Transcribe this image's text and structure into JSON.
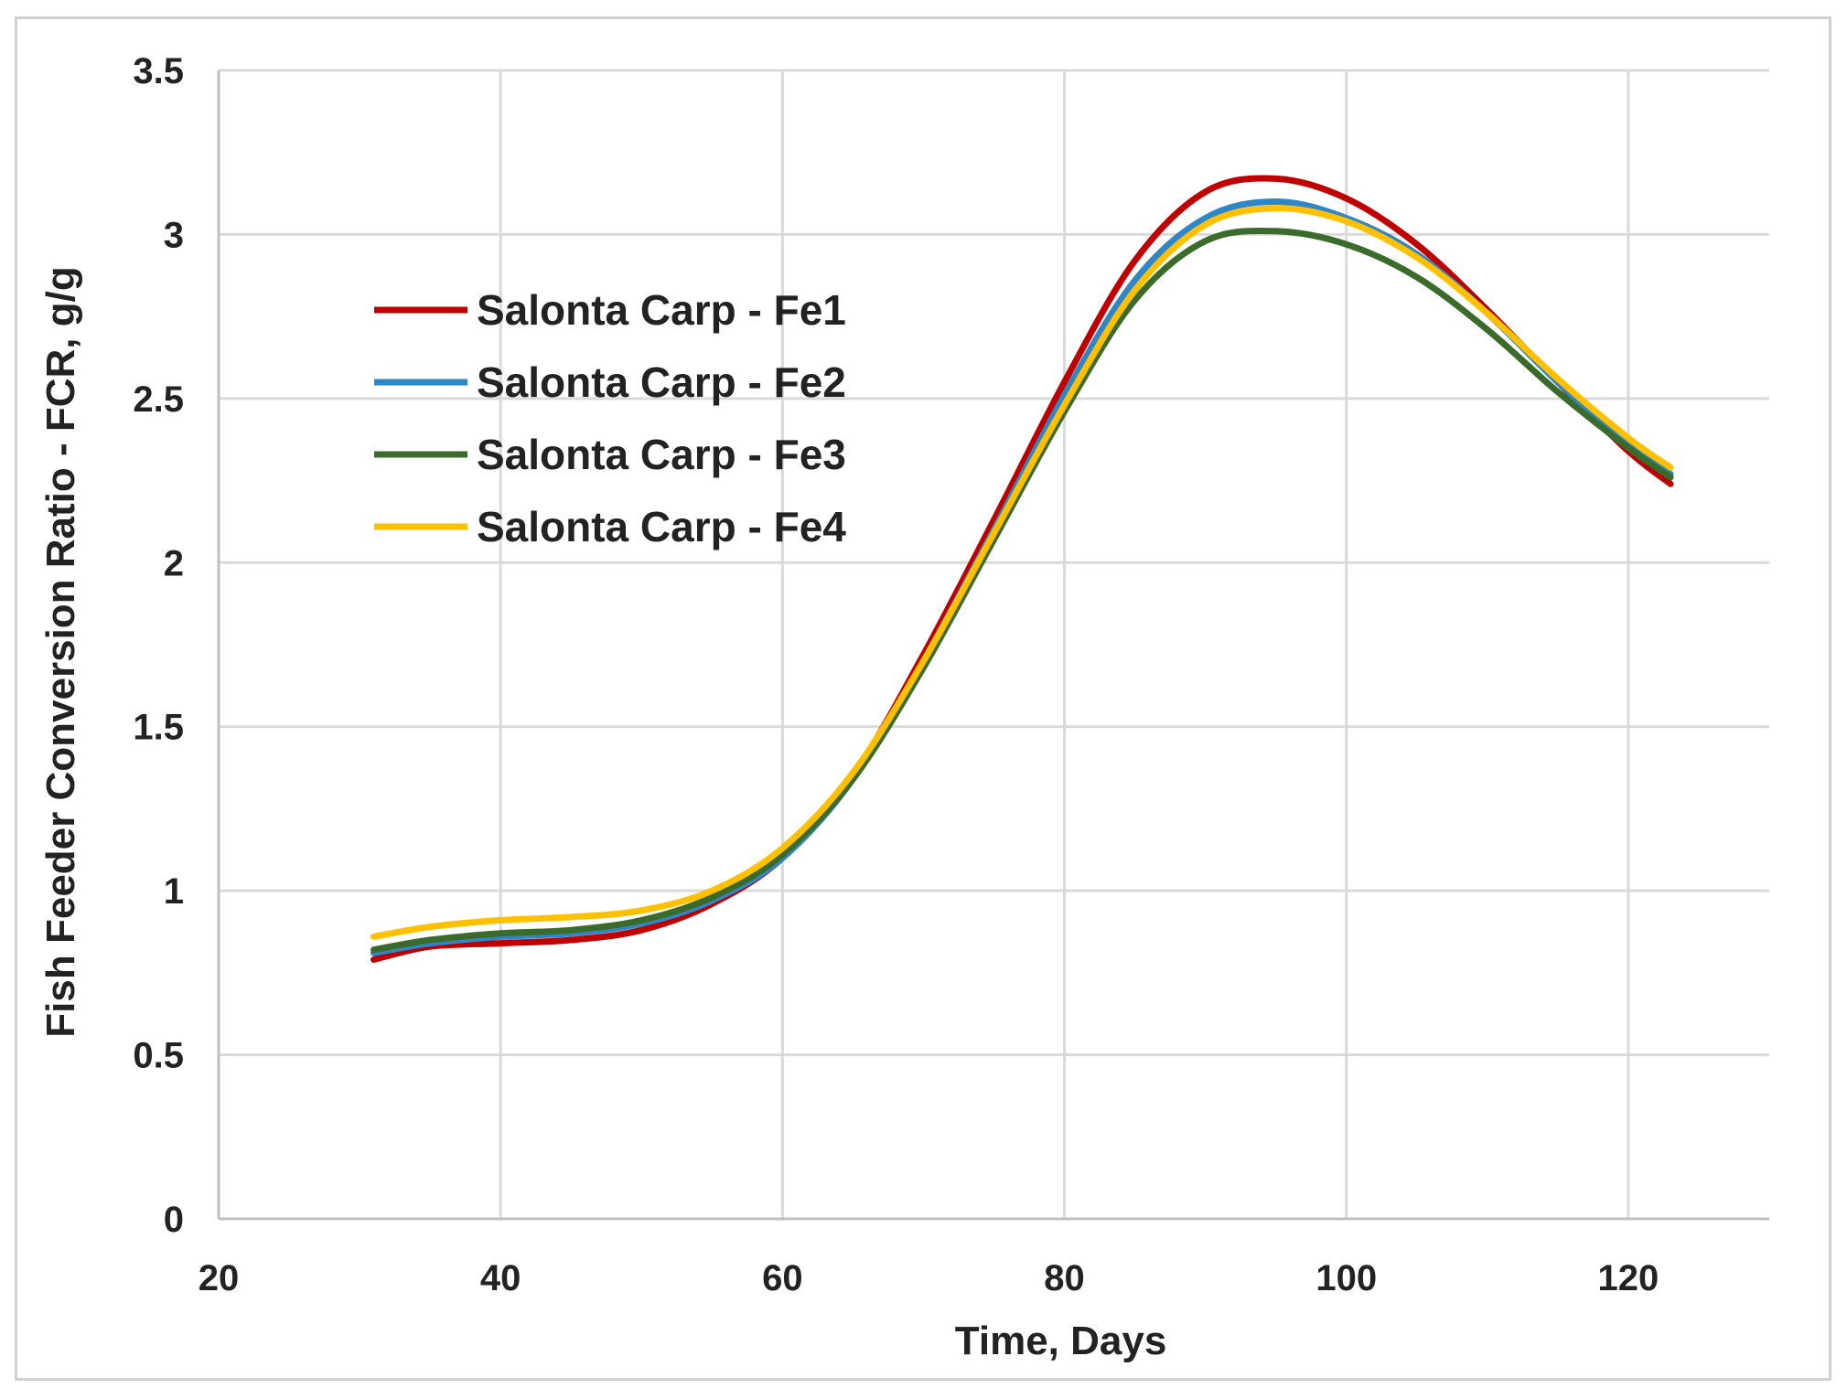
{
  "chart_data": {
    "type": "line",
    "title": "",
    "xlabel": "Time, Days",
    "ylabel": "Fish Feeder Conversion Ratio -  FCR, g/g",
    "xlim": [
      20,
      130
    ],
    "ylim": [
      0,
      3.5
    ],
    "x_ticks": [
      20,
      40,
      60,
      80,
      100,
      120
    ],
    "y_ticks": [
      0,
      0.5,
      1,
      1.5,
      2,
      2.5,
      3,
      3.5
    ],
    "x_tick_labels": [
      "20",
      "40",
      "60",
      "80",
      "100",
      "120"
    ],
    "y_tick_labels": [
      "0",
      "0.5",
      "1",
      "1.5",
      "2",
      "2.5",
      "3",
      "3.5"
    ],
    "grid": true,
    "legend_position": "upper-left",
    "x": [
      31,
      35,
      40,
      45,
      50,
      55,
      60,
      65,
      70,
      75,
      80,
      85,
      90,
      95,
      100,
      105,
      110,
      115,
      120,
      123
    ],
    "series": [
      {
        "name": "Salonta Carp - Fe1",
        "color": "#c00000",
        "values": [
          0.79,
          0.83,
          0.84,
          0.85,
          0.88,
          0.96,
          1.1,
          1.35,
          1.72,
          2.13,
          2.55,
          2.92,
          3.13,
          3.17,
          3.11,
          2.97,
          2.77,
          2.55,
          2.34,
          2.24
        ]
      },
      {
        "name": "Salonta Carp - Fe2",
        "color": "#2e86c8",
        "values": [
          0.81,
          0.84,
          0.86,
          0.87,
          0.9,
          0.97,
          1.1,
          1.34,
          1.7,
          2.1,
          2.51,
          2.86,
          3.05,
          3.1,
          3.05,
          2.94,
          2.76,
          2.55,
          2.36,
          2.27
        ]
      },
      {
        "name": "Salonta Carp - Fe3",
        "color": "#3a6b2a",
        "values": [
          0.82,
          0.85,
          0.87,
          0.88,
          0.91,
          0.98,
          1.11,
          1.34,
          1.68,
          2.07,
          2.46,
          2.8,
          2.98,
          3.01,
          2.97,
          2.87,
          2.71,
          2.52,
          2.35,
          2.26
        ]
      },
      {
        "name": "Salonta Carp - Fe4",
        "color": "#ffc000",
        "values": [
          0.86,
          0.89,
          0.91,
          0.92,
          0.94,
          1.0,
          1.13,
          1.36,
          1.7,
          2.09,
          2.48,
          2.83,
          3.03,
          3.08,
          3.04,
          2.93,
          2.76,
          2.56,
          2.38,
          2.29
        ]
      }
    ]
  }
}
